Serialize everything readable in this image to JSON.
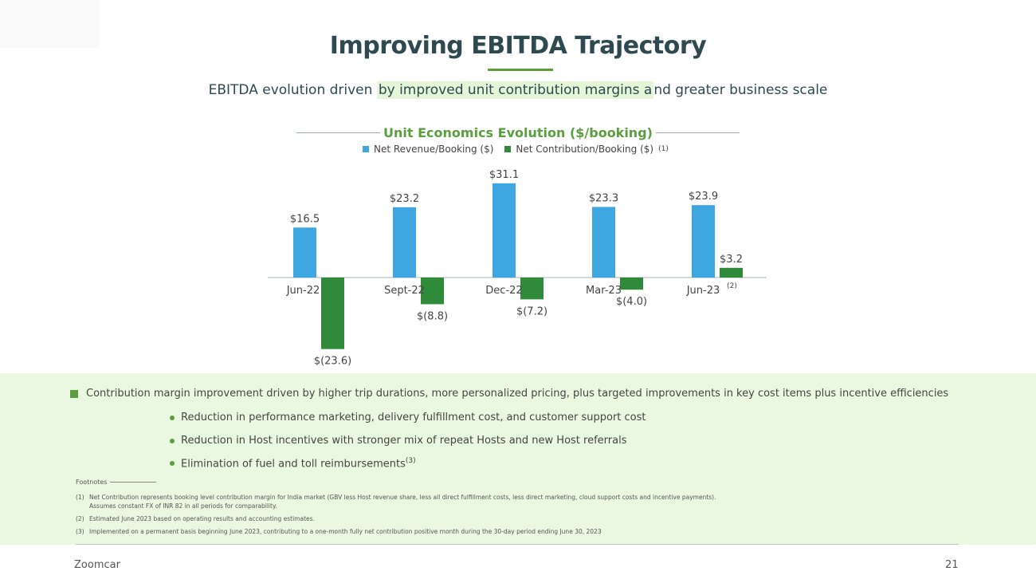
{
  "title": "Improving EBITDA Trajectory",
  "subtitle": {
    "part1": "EBITDA evolution driven ",
    "highlight": "by improved unit contribution margins a",
    "part2": "nd greater business scale"
  },
  "chart_data": {
    "type": "bar",
    "title": "Unit Economics Evolution ($/booking)",
    "categories": [
      "Jun-22",
      "Sept-22",
      "Dec-22",
      "Mar-23",
      "Jun-23"
    ],
    "category_superscripts": [
      "",
      "",
      "",
      "",
      "(2)"
    ],
    "series": [
      {
        "name": "Net Revenue/Booking ($)",
        "color": "#3ea7e1",
        "values": [
          16.5,
          23.2,
          31.1,
          23.3,
          23.9
        ],
        "labels": [
          "$16.5",
          "$23.2",
          "$31.1",
          "$23.3",
          "$23.9"
        ]
      },
      {
        "name": "Net Contribution/Booking ($)",
        "color": "#2f8a3a",
        "values": [
          -23.6,
          -8.8,
          -7.2,
          -4.0,
          3.2
        ],
        "labels": [
          "$(23.6)",
          "$(8.8)",
          "$(7.2)",
          "$(4.0)",
          "$3.2"
        ]
      }
    ],
    "legend_superscript": "(1)",
    "ylim": [
      -23.6,
      31.1
    ],
    "grid": false,
    "legend_position": "top-center"
  },
  "bullets": {
    "main": "Contribution margin improvement driven by higher trip durations, more personalized pricing, plus targeted improvements in key cost items plus incentive efficiencies",
    "sub": [
      {
        "text": "Reduction in performance marketing, delivery fulfillment cost, and customer support cost",
        "sup": ""
      },
      {
        "text": "Reduction in Host incentives with stronger mix of repeat Hosts and new Host referrals",
        "sup": ""
      },
      {
        "text": "Elimination of fuel and toll reimbursements",
        "sup": "(3)"
      }
    ]
  },
  "footnotes": {
    "heading": "Footnotes",
    "items": [
      {
        "num": "(1)",
        "text": "Net Contribution represents booking level contribution margin for India market (GBV less Host revenue share, less all direct fulfillment costs, less direct marketing, cloud support costs and incentive payments).",
        "cont": "Assumes constant FX of INR 82 in all periods for comparability."
      },
      {
        "num": "(2)",
        "text": "Estimated June 2023 based on operating results and accounting estimates.",
        "cont": ""
      },
      {
        "num": "(3)",
        "text": "Implemented on a permanent basis beginning June 2023, contributing to a one-month fully net contribution positive month during the 30-day period ending June 30, 2023",
        "cont": ""
      }
    ]
  },
  "footer": {
    "brand": "Zoomcar",
    "page": "21"
  }
}
